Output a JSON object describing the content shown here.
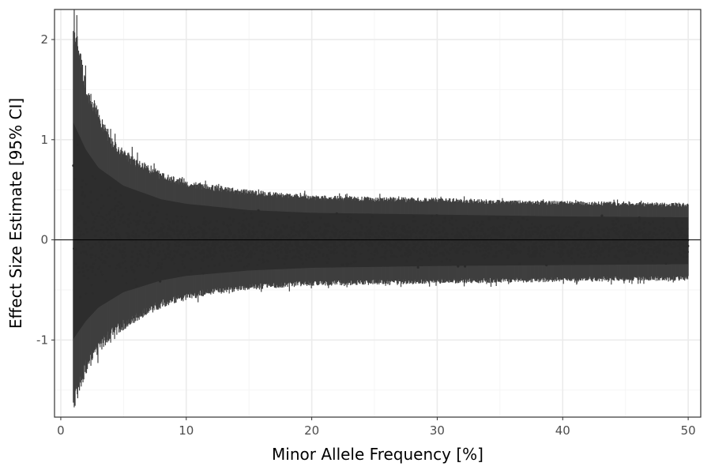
{
  "chart_data": {
    "type": "scatter",
    "subtype": "point-range (effect estimate with 95% CI per variant)",
    "title": "",
    "xlabel": "Minor Allele Frequency [%]",
    "ylabel": "Effect Size Estimate [95% CI]",
    "xlim": [
      -0.5,
      51
    ],
    "ylim": [
      -1.77,
      2.3
    ],
    "xticks": [
      0,
      10,
      20,
      30,
      40,
      50
    ],
    "xtick_labels": [
      "0",
      "10",
      "20",
      "30",
      "40",
      "50"
    ],
    "yticks": [
      -1,
      0,
      1,
      2
    ],
    "ytick_labels": [
      "-1",
      "0",
      "1",
      "2"
    ],
    "grid": true,
    "legend": "none",
    "reference_line_y": 0,
    "x_range_of_variants": [
      1,
      50
    ],
    "ci_envelope": {
      "x": [
        1,
        1.5,
        2,
        3,
        4,
        5,
        6,
        8,
        10,
        12,
        15,
        20,
        25,
        30,
        35,
        40,
        45,
        50
      ],
      "upper": [
        2.2,
        1.95,
        1.6,
        1.3,
        1.05,
        0.9,
        0.82,
        0.68,
        0.6,
        0.55,
        0.5,
        0.45,
        0.43,
        0.42,
        0.4,
        0.39,
        0.38,
        0.37
      ],
      "lower": [
        -1.7,
        -1.55,
        -1.35,
        -1.15,
        -1.0,
        -0.9,
        -0.82,
        -0.68,
        -0.6,
        -0.55,
        -0.5,
        -0.46,
        -0.45,
        -0.44,
        -0.43,
        -0.42,
        -0.41,
        -0.41
      ]
    },
    "point_envelope": {
      "x": [
        1,
        2,
        3,
        5,
        8,
        10,
        15,
        20,
        30,
        40,
        50
      ],
      "upper": [
        1.3,
        1.0,
        0.8,
        0.6,
        0.45,
        0.4,
        0.33,
        0.3,
        0.28,
        0.26,
        0.25
      ],
      "lower": [
        -1.1,
        -0.9,
        -0.75,
        -0.58,
        -0.45,
        -0.4,
        -0.34,
        -0.31,
        -0.29,
        -0.28,
        -0.27
      ]
    },
    "colors": {
      "ci": "#3f3f3f",
      "points": "#2b2b2b",
      "grid_major": "#ebebeb",
      "grid_minor": "#f5f5f5",
      "panel_border": "#333333",
      "zero_line": "#000000"
    }
  }
}
